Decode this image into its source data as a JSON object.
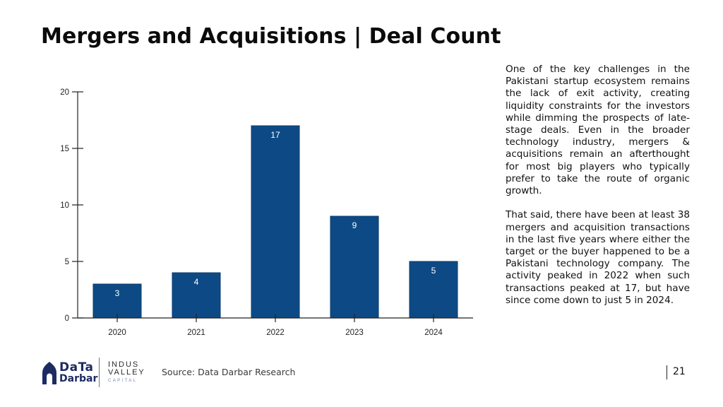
{
  "slide": {
    "title": "Mergers and Acquisitions | Deal Count",
    "paragraphs": [
      "One of the key challenges in the Pakistani startup ecosystem remains the lack of exit activity, creating liquidity constraints for the investors while dimming the prospects of late-stage deals. Even in the broader technology industry, mergers & acquisitions remain an afterthought for most big players who typically prefer to take the route of organic growth.",
      "That said, there have been at least 38 mergers and acquisition transactions in the last five years where either the target or the buyer happened to be a Pakistani technology company. The activity peaked in 2022 when such transactions peaked at 17, but have since come down to just 5 in 2024."
    ],
    "source": "Source: Data Darbar Research",
    "page_number": "21"
  },
  "logos": {
    "data_darbar": {
      "line1": "DaTa",
      "line2": "Darbar"
    },
    "indus_valley": {
      "line1": "INDUS",
      "line2": "VALLEY",
      "line3": "CAPITAL"
    }
  },
  "colors": {
    "bar": "#0d4a85",
    "axis": "#222222",
    "text": "#111111"
  },
  "chart_data": {
    "type": "bar",
    "categories": [
      "2020",
      "2021",
      "2022",
      "2023",
      "2024"
    ],
    "values": [
      3,
      4,
      17,
      9,
      5
    ],
    "data_labels": [
      "3",
      "4",
      "17",
      "9",
      "5"
    ],
    "ylim": [
      0,
      20
    ],
    "yticks": [
      0,
      5,
      10,
      15,
      20
    ],
    "title": "",
    "xlabel": "",
    "ylabel": "",
    "grid": false,
    "legend": "none"
  }
}
